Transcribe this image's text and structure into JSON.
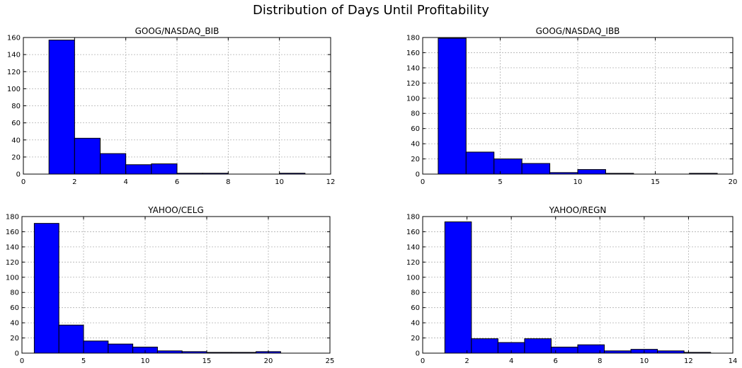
{
  "figure": {
    "title": "Distribution of Days Until Profitability"
  },
  "colors": {
    "bar_fill": "#0000ff",
    "bar_edge": "#000000",
    "grid": "#b0b0b0",
    "axes": "#000000"
  },
  "chart_data": [
    {
      "type": "bar",
      "title": "GOOG/NASDAQ_BIB",
      "xlim": [
        0,
        12
      ],
      "ylim": [
        0,
        160
      ],
      "xticks": [
        0,
        2,
        4,
        6,
        8,
        10,
        12
      ],
      "yticks": [
        0,
        20,
        40,
        60,
        80,
        100,
        120,
        140,
        160
      ],
      "grid": true,
      "bin_edges": [
        1,
        2,
        3,
        4,
        5,
        6,
        7,
        8,
        9,
        10,
        11
      ],
      "values": [
        157,
        42,
        24,
        11,
        12,
        1,
        1,
        0,
        0,
        1
      ]
    },
    {
      "type": "bar",
      "title": "GOOG/NASDAQ_IBB",
      "xlim": [
        0,
        20
      ],
      "ylim": [
        0,
        180
      ],
      "xticks": [
        0,
        5,
        10,
        15,
        20
      ],
      "yticks": [
        0,
        20,
        40,
        60,
        80,
        100,
        120,
        140,
        160,
        180
      ],
      "grid": true,
      "bin_edges": [
        1,
        2.8,
        4.6,
        6.4,
        8.2,
        10,
        11.8,
        13.6,
        15.4,
        17.2,
        19
      ],
      "values": [
        179,
        29,
        20,
        14,
        2,
        6,
        1,
        0,
        0,
        1
      ]
    },
    {
      "type": "bar",
      "title": "YAHOO/CELG",
      "xlim": [
        0,
        25
      ],
      "ylim": [
        0,
        180
      ],
      "xticks": [
        0,
        5,
        10,
        15,
        20,
        25
      ],
      "yticks": [
        0,
        20,
        40,
        60,
        80,
        100,
        120,
        140,
        160,
        180
      ],
      "grid": true,
      "bin_edges": [
        1,
        3,
        5,
        7,
        9,
        11,
        13,
        15,
        17,
        19,
        21
      ],
      "values": [
        171,
        37,
        16,
        12,
        8,
        3,
        2,
        1,
        1,
        2
      ]
    },
    {
      "type": "bar",
      "title": "YAHOO/REGN",
      "xlim": [
        0,
        14
      ],
      "ylim": [
        0,
        180
      ],
      "xticks": [
        0,
        2,
        4,
        6,
        8,
        10,
        12,
        14
      ],
      "yticks": [
        0,
        20,
        40,
        60,
        80,
        100,
        120,
        140,
        160,
        180
      ],
      "grid": true,
      "bin_edges": [
        1,
        2.2,
        3.4,
        4.6,
        5.8,
        7,
        8.2,
        9.4,
        10.6,
        11.8,
        13
      ],
      "values": [
        173,
        19,
        14,
        19,
        8,
        11,
        3,
        5,
        3,
        1
      ]
    }
  ]
}
